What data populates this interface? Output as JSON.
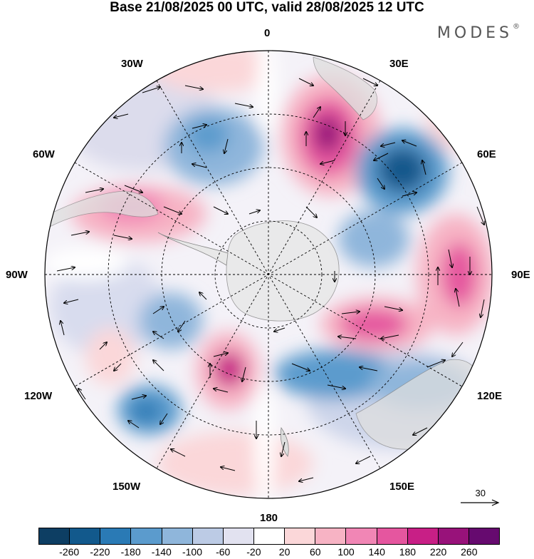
{
  "title": "Base 21/08/2025 00 UTC, valid 28/08/2025 12 UTC",
  "brand": {
    "name": "MODES",
    "mark": "®"
  },
  "longitude_labels": {
    "top": "0",
    "bottom": "180",
    "left": "90W",
    "right": "90E",
    "30w": "30W",
    "30e": "30E",
    "60w": "60W",
    "60e": "60E",
    "120w": "120W",
    "120e": "120E",
    "150w": "150W",
    "150e": "150E"
  },
  "reference_vector": {
    "value": "30"
  },
  "colorbar": {
    "colors": [
      "#0d3e63",
      "#12598c",
      "#2a7ab5",
      "#5b9bcd",
      "#8fb6db",
      "#bccbe5",
      "#e2e2f0",
      "#ffffff",
      "#fbd7d9",
      "#f7b3c4",
      "#f186b5",
      "#e5569f",
      "#c81f86",
      "#98127a",
      "#660a6f"
    ],
    "labels": [
      "-260",
      "-220",
      "-180",
      "-140",
      "-100",
      "-60",
      "-20",
      "20",
      "60",
      "100",
      "140",
      "180",
      "220",
      "260"
    ]
  }
}
